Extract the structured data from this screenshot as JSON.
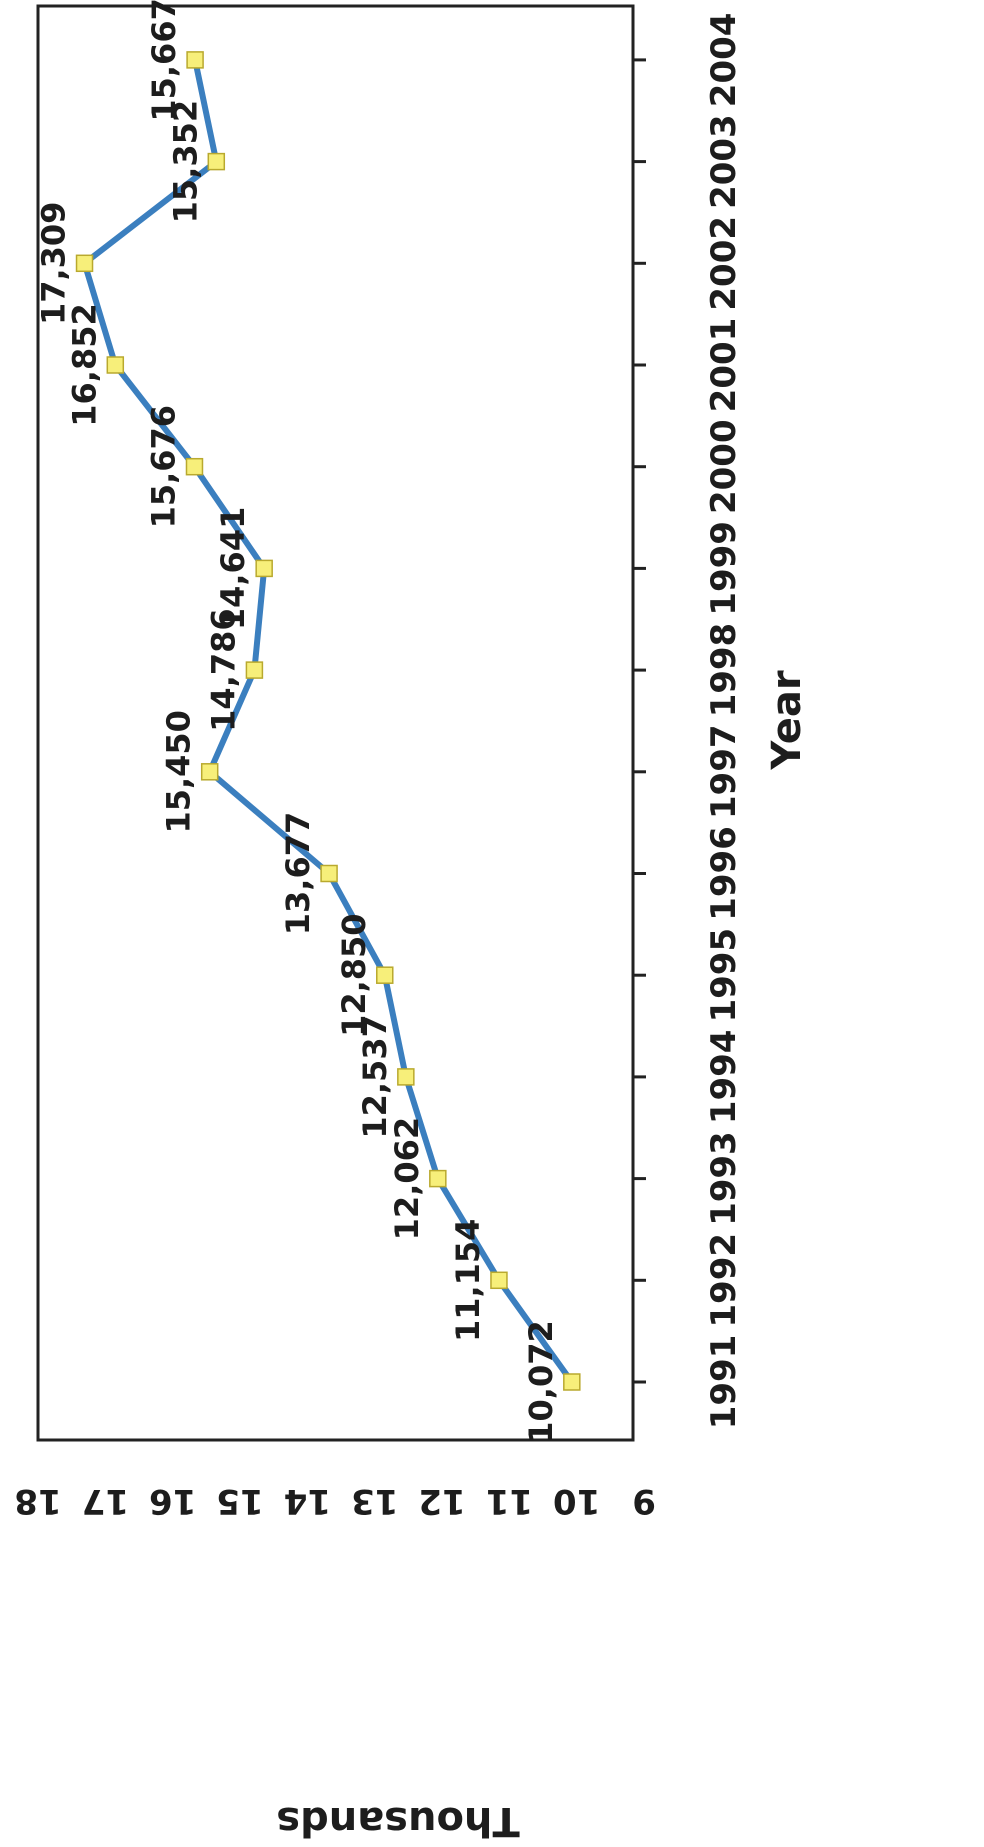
{
  "chart_data": {
    "type": "line",
    "title": "",
    "xlabel": "Year",
    "ylabel": "Thousands",
    "x": [
      "1991",
      "1992",
      "1993",
      "1994",
      "1995",
      "1996",
      "1997",
      "1998",
      "1999",
      "2000",
      "2001",
      "2002",
      "2003",
      "2004"
    ],
    "series": [
      {
        "values": [
          10072,
          11154,
          12062,
          12537,
          12850,
          13677,
          15450,
          14786,
          14641,
          15676,
          16852,
          17309,
          15352,
          15667
        ],
        "data_labels": [
          "10,072",
          "11,154",
          "12,062",
          "12,537",
          "12,850",
          "13,677",
          "15,450",
          "14,786",
          "14,641",
          "15,676",
          "16,852",
          "17,309",
          "15,352",
          "15,667"
        ]
      }
    ],
    "y_ticks": [
      "9",
      "10",
      "11",
      "12",
      "13",
      "14",
      "15",
      "16",
      "17",
      "18"
    ],
    "ylim": [
      9,
      18
    ],
    "line_color": "#3b7fbf",
    "marker_color": "#f7ef7a",
    "marker_stroke": "#b9a92e",
    "grid": false,
    "legend": "none",
    "orientation": "rotated-90-clockwise"
  }
}
